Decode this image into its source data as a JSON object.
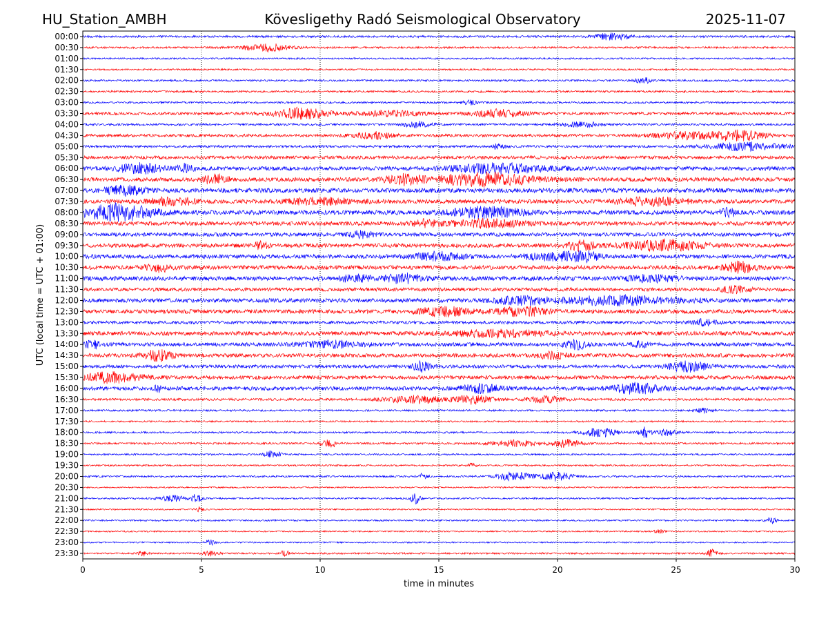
{
  "header": {
    "station": "HU_Station_AMBH",
    "observatory": "Kövesligethy Radó Seismological Observatory",
    "date": "2025-11-07"
  },
  "chart_data": {
    "type": "line",
    "subtype": "helicorder",
    "xlabel": "time in minutes",
    "ylabel": "UTC (local time = UTC + 01:00)",
    "xlim": [
      0,
      30
    ],
    "x_ticks": [
      0,
      5,
      10,
      15,
      20,
      25,
      30
    ],
    "x_gridlines": [
      5,
      10,
      15,
      20,
      25
    ],
    "grid": "vertical dotted",
    "colors": [
      "#0000ff",
      "#ff0000"
    ],
    "color_cycle": "alternating blue (on the hour) / red (on the half hour)",
    "rows": [
      {
        "label": "00:00",
        "amp": 0.45,
        "bursts": [
          {
            "t": 22.3,
            "a": 1.4,
            "w": 0.7
          }
        ]
      },
      {
        "label": "00:30",
        "amp": 0.4,
        "bursts": [
          {
            "t": 7.7,
            "a": 1.6,
            "w": 1.0
          }
        ]
      },
      {
        "label": "01:00",
        "amp": 0.35,
        "bursts": []
      },
      {
        "label": "01:30",
        "amp": 0.35,
        "bursts": []
      },
      {
        "label": "02:00",
        "amp": 0.4,
        "bursts": [
          {
            "t": 23.6,
            "a": 1.3,
            "w": 0.3
          }
        ]
      },
      {
        "label": "02:30",
        "amp": 0.4,
        "bursts": []
      },
      {
        "label": "03:00",
        "amp": 0.4,
        "bursts": [
          {
            "t": 16.3,
            "a": 0.9,
            "w": 0.3
          }
        ]
      },
      {
        "label": "03:30",
        "amp": 0.6,
        "bursts": [
          {
            "t": 9.2,
            "a": 2.2,
            "w": 1.2
          },
          {
            "t": 17.5,
            "a": 1.5,
            "w": 1.0
          },
          {
            "t": 13.0,
            "a": 1.1,
            "w": 1.2
          }
        ]
      },
      {
        "label": "04:00",
        "amp": 0.45,
        "bursts": [
          {
            "t": 14.1,
            "a": 1.2,
            "w": 0.6
          },
          {
            "t": 21.0,
            "a": 1.0,
            "w": 0.8
          }
        ]
      },
      {
        "label": "04:30",
        "amp": 0.6,
        "bursts": [
          {
            "t": 27.7,
            "a": 2.0,
            "w": 1.0
          },
          {
            "t": 12.2,
            "a": 1.3,
            "w": 0.8
          },
          {
            "t": 25.5,
            "a": 1.3,
            "w": 1.5
          }
        ]
      },
      {
        "label": "05:00",
        "amp": 0.5,
        "bursts": [
          {
            "t": 28.0,
            "a": 1.6,
            "w": 1.6
          },
          {
            "t": 17.5,
            "a": 0.9,
            "w": 0.3
          }
        ]
      },
      {
        "label": "05:30",
        "amp": 0.7,
        "bursts": []
      },
      {
        "label": "06:00",
        "amp": 0.85,
        "bursts": [
          {
            "t": 2.4,
            "a": 1.9,
            "w": 0.9
          },
          {
            "t": 17.5,
            "a": 1.8,
            "w": 2.0
          },
          {
            "t": 4.3,
            "a": 1.6,
            "w": 0.3
          }
        ]
      },
      {
        "label": "06:30",
        "amp": 0.85,
        "bursts": [
          {
            "t": 17.0,
            "a": 2.6,
            "w": 2.0
          },
          {
            "t": 5.6,
            "a": 2.0,
            "w": 0.5
          },
          {
            "t": 13.5,
            "a": 2.0,
            "w": 0.8
          }
        ]
      },
      {
        "label": "07:00",
        "amp": 0.95,
        "bursts": [
          {
            "t": 1.8,
            "a": 1.8,
            "w": 0.8
          }
        ]
      },
      {
        "label": "07:30",
        "amp": 0.85,
        "bursts": [
          {
            "t": 3.8,
            "a": 1.5,
            "w": 1.0
          },
          {
            "t": 24.0,
            "a": 1.5,
            "w": 1.5
          },
          {
            "t": 10.0,
            "a": 1.2,
            "w": 1.5
          }
        ]
      },
      {
        "label": "08:00",
        "amp": 0.95,
        "bursts": [
          {
            "t": 1.5,
            "a": 3.2,
            "w": 1.5
          },
          {
            "t": 17.0,
            "a": 2.0,
            "w": 1.5
          },
          {
            "t": 27.3,
            "a": 1.6,
            "w": 0.4
          }
        ]
      },
      {
        "label": "08:30",
        "amp": 0.85,
        "bursts": [
          {
            "t": 17.0,
            "a": 1.5,
            "w": 1.5
          },
          {
            "t": 14.5,
            "a": 1.3,
            "w": 0.6
          }
        ]
      },
      {
        "label": "09:00",
        "amp": 0.8,
        "bursts": [
          {
            "t": 11.8,
            "a": 1.3,
            "w": 0.5
          }
        ]
      },
      {
        "label": "09:30",
        "amp": 0.85,
        "bursts": [
          {
            "t": 24.5,
            "a": 2.2,
            "w": 1.5
          },
          {
            "t": 21.0,
            "a": 1.8,
            "w": 0.6
          },
          {
            "t": 7.5,
            "a": 1.3,
            "w": 0.3
          }
        ]
      },
      {
        "label": "10:00",
        "amp": 0.85,
        "bursts": [
          {
            "t": 21.0,
            "a": 2.3,
            "w": 0.7
          },
          {
            "t": 15.0,
            "a": 1.6,
            "w": 1.0
          },
          {
            "t": 19.5,
            "a": 1.3,
            "w": 1.0
          }
        ]
      },
      {
        "label": "10:30",
        "amp": 0.85,
        "bursts": [
          {
            "t": 27.7,
            "a": 2.2,
            "w": 0.6
          },
          {
            "t": 3.2,
            "a": 1.6,
            "w": 0.5
          }
        ]
      },
      {
        "label": "11:00",
        "amp": 0.9,
        "bursts": [
          {
            "t": 13.5,
            "a": 1.8,
            "w": 0.8
          },
          {
            "t": 11.5,
            "a": 1.4,
            "w": 0.6
          },
          {
            "t": 24.0,
            "a": 1.3,
            "w": 1.0
          }
        ]
      },
      {
        "label": "11:30",
        "amp": 0.75,
        "bursts": [
          {
            "t": 27.5,
            "a": 1.2,
            "w": 0.6
          }
        ]
      },
      {
        "label": "12:00",
        "amp": 0.85,
        "bursts": [
          {
            "t": 22.5,
            "a": 1.7,
            "w": 2.5
          },
          {
            "t": 18.5,
            "a": 1.5,
            "w": 1.0
          }
        ]
      },
      {
        "label": "12:30",
        "amp": 0.85,
        "bursts": [
          {
            "t": 15.2,
            "a": 1.8,
            "w": 1.0
          },
          {
            "t": 18.5,
            "a": 1.8,
            "w": 1.0
          }
        ]
      },
      {
        "label": "13:00",
        "amp": 0.65,
        "bursts": [
          {
            "t": 26.2,
            "a": 1.2,
            "w": 0.5
          }
        ]
      },
      {
        "label": "13:30",
        "amp": 0.85,
        "bursts": [
          {
            "t": 17.5,
            "a": 1.3,
            "w": 2.0
          }
        ]
      },
      {
        "label": "14:00",
        "amp": 0.8,
        "bursts": [
          {
            "t": 0.4,
            "a": 1.8,
            "w": 0.3
          },
          {
            "t": 20.8,
            "a": 1.7,
            "w": 0.5
          },
          {
            "t": 10.5,
            "a": 1.3,
            "w": 1.2
          },
          {
            "t": 23.5,
            "a": 1.2,
            "w": 0.3
          }
        ]
      },
      {
        "label": "14:30",
        "amp": 0.8,
        "bursts": [
          {
            "t": 3.2,
            "a": 2.2,
            "w": 0.6
          },
          {
            "t": 19.8,
            "a": 1.3,
            "w": 0.6
          }
        ]
      },
      {
        "label": "15:00",
        "amp": 0.7,
        "bursts": [
          {
            "t": 14.3,
            "a": 2.0,
            "w": 0.4
          },
          {
            "t": 25.5,
            "a": 2.0,
            "w": 0.8
          }
        ]
      },
      {
        "label": "15:30",
        "amp": 0.8,
        "bursts": [
          {
            "t": 1.2,
            "a": 2.0,
            "w": 1.2
          }
        ]
      },
      {
        "label": "16:00",
        "amp": 0.8,
        "bursts": [
          {
            "t": 23.3,
            "a": 2.0,
            "w": 1.0
          },
          {
            "t": 16.8,
            "a": 1.6,
            "w": 0.8
          },
          {
            "t": 3.2,
            "a": 1.3,
            "w": 0.2
          }
        ]
      },
      {
        "label": "16:30",
        "amp": 0.5,
        "bursts": [
          {
            "t": 16.5,
            "a": 1.8,
            "w": 0.8
          },
          {
            "t": 14.0,
            "a": 1.5,
            "w": 1.2
          },
          {
            "t": 19.5,
            "a": 1.2,
            "w": 0.8
          }
        ]
      },
      {
        "label": "17:00",
        "amp": 0.4,
        "bursts": [
          {
            "t": 26.2,
            "a": 1.2,
            "w": 0.3
          }
        ]
      },
      {
        "label": "17:30",
        "amp": 0.35,
        "bursts": []
      },
      {
        "label": "18:00",
        "amp": 0.4,
        "bursts": [
          {
            "t": 21.8,
            "a": 1.9,
            "w": 0.7
          },
          {
            "t": 23.7,
            "a": 2.2,
            "w": 0.25
          },
          {
            "t": 24.6,
            "a": 1.5,
            "w": 0.4
          }
        ]
      },
      {
        "label": "18:30",
        "amp": 0.4,
        "bursts": [
          {
            "t": 10.4,
            "a": 1.8,
            "w": 0.3
          },
          {
            "t": 18.2,
            "a": 1.3,
            "w": 1.0
          },
          {
            "t": 20.4,
            "a": 1.6,
            "w": 0.6
          }
        ]
      },
      {
        "label": "19:00",
        "amp": 0.35,
        "bursts": [
          {
            "t": 8.0,
            "a": 1.8,
            "w": 0.3
          }
        ]
      },
      {
        "label": "19:30",
        "amp": 0.35,
        "bursts": [
          {
            "t": 16.4,
            "a": 1.0,
            "w": 0.15
          }
        ]
      },
      {
        "label": "20:00",
        "amp": 0.4,
        "bursts": [
          {
            "t": 18.2,
            "a": 1.8,
            "w": 0.7
          },
          {
            "t": 20.0,
            "a": 1.8,
            "w": 0.6
          },
          {
            "t": 14.3,
            "a": 1.1,
            "w": 0.2
          }
        ]
      },
      {
        "label": "20:30",
        "amp": 0.3,
        "bursts": []
      },
      {
        "label": "21:00",
        "amp": 0.35,
        "bursts": [
          {
            "t": 14.0,
            "a": 2.3,
            "w": 0.2
          },
          {
            "t": 4.8,
            "a": 1.7,
            "w": 0.2
          },
          {
            "t": 3.8,
            "a": 1.2,
            "w": 0.6
          }
        ]
      },
      {
        "label": "21:30",
        "amp": 0.3,
        "bursts": [
          {
            "t": 4.9,
            "a": 1.0,
            "w": 0.2
          }
        ]
      },
      {
        "label": "22:00",
        "amp": 0.35,
        "bursts": [
          {
            "t": 29.0,
            "a": 1.3,
            "w": 0.2
          }
        ]
      },
      {
        "label": "22:30",
        "amp": 0.3,
        "bursts": [
          {
            "t": 24.3,
            "a": 1.0,
            "w": 0.2
          }
        ]
      },
      {
        "label": "23:00",
        "amp": 0.3,
        "bursts": [
          {
            "t": 5.4,
            "a": 1.2,
            "w": 0.2
          }
        ]
      },
      {
        "label": "23:30",
        "amp": 0.35,
        "bursts": [
          {
            "t": 26.5,
            "a": 1.6,
            "w": 0.2
          },
          {
            "t": 8.5,
            "a": 1.3,
            "w": 0.2
          },
          {
            "t": 2.5,
            "a": 1.1,
            "w": 0.2
          },
          {
            "t": 5.4,
            "a": 1.1,
            "w": 0.3
          }
        ]
      }
    ]
  }
}
